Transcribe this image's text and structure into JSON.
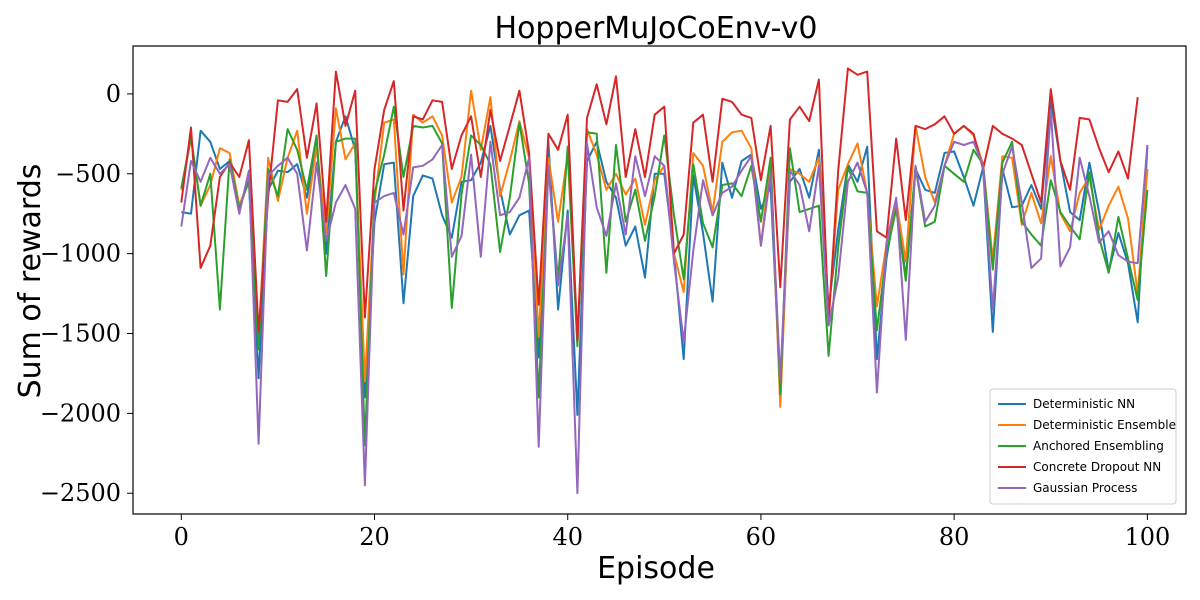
{
  "chart_data": {
    "type": "line",
    "title": "HopperMuJoCoEnv-v0",
    "xlabel": "Episode",
    "ylabel": "Sum of rewards",
    "xlim": [
      -5,
      104
    ],
    "ylim": [
      -2630,
      300
    ],
    "xticks": [
      0,
      20,
      40,
      60,
      80,
      100
    ],
    "yticks": [
      0,
      -500,
      -1000,
      -1500,
      -2000,
      -2500
    ],
    "xtick_labels": [
      "0",
      "20",
      "40",
      "60",
      "80",
      "100"
    ],
    "ytick_labels": [
      "0",
      "−500",
      "−1000",
      "−1500",
      "−2000",
      "−2500"
    ],
    "grid": false,
    "legend_position": "bottom-right",
    "series": [
      {
        "name": "Deterministic NN",
        "color": "#1f77b4",
        "values": [
          -740,
          -750,
          -230,
          -300,
          -470,
          -420,
          -700,
          -550,
          -1780,
          -600,
          -480,
          -490,
          -440,
          -650,
          -320,
          -1000,
          -300,
          -140,
          -350,
          -1900,
          -800,
          -440,
          -430,
          -1310,
          -640,
          -510,
          -530,
          -760,
          -900,
          -550,
          -540,
          -430,
          -200,
          -600,
          -880,
          -760,
          -730,
          -1650,
          -300,
          -1350,
          -730,
          -2010,
          -420,
          -300,
          -550,
          -650,
          -950,
          -830,
          -1150,
          -500,
          -500,
          -1000,
          -1660,
          -510,
          -870,
          -1300,
          -430,
          -650,
          -420,
          -380,
          -720,
          -580,
          -1850,
          -550,
          -470,
          -650,
          -350,
          -1340,
          -850,
          -440,
          -550,
          -330,
          -1660,
          -1030,
          -670,
          -1150,
          -470,
          -600,
          -620,
          -370,
          -360,
          -520,
          -700,
          -460,
          -1490,
          -470,
          -710,
          -700,
          -570,
          -720,
          -40,
          -420,
          -740,
          -790,
          -430,
          -740,
          -1110,
          -870,
          -1060,
          -1430,
          -330
        ]
      },
      {
        "name": "Deterministic Ensemble",
        "color": "#ff7f0e",
        "values": [
          -600,
          -280,
          -700,
          -570,
          -340,
          -370,
          -700,
          -540,
          -1550,
          -400,
          -670,
          -400,
          -230,
          -750,
          -330,
          -870,
          -90,
          -410,
          -310,
          -1800,
          -680,
          -180,
          -160,
          -1130,
          -130,
          -180,
          -140,
          -260,
          -680,
          -520,
          20,
          -350,
          -20,
          -640,
          -420,
          -170,
          -400,
          -1520,
          -400,
          -800,
          -380,
          -1550,
          -220,
          -380,
          -600,
          -500,
          -630,
          -530,
          -820,
          -540,
          -450,
          -1000,
          -1240,
          -370,
          -450,
          -740,
          -300,
          -240,
          -230,
          -340,
          -950,
          -420,
          -1960,
          -470,
          -500,
          -550,
          -400,
          -1400,
          -600,
          -440,
          -310,
          -620,
          -1330,
          -940,
          -670,
          -1050,
          -200,
          -520,
          -680,
          -450,
          -250,
          -200,
          -260,
          -440,
          -1040,
          -390,
          -400,
          -820,
          -620,
          -810,
          -390,
          -750,
          -860,
          -620,
          -520,
          -850,
          -700,
          -580,
          -780,
          -1250,
          -470
        ]
      },
      {
        "name": "Anchored Ensembling",
        "color": "#2ca02c",
        "values": [
          -590,
          -270,
          -700,
          -500,
          -1350,
          -410,
          -720,
          -540,
          -1600,
          -470,
          -640,
          -220,
          -350,
          -600,
          -260,
          -1140,
          -300,
          -280,
          -280,
          -2200,
          -620,
          -380,
          -80,
          -520,
          -200,
          -210,
          -200,
          -310,
          -1340,
          -630,
          -260,
          -320,
          -440,
          -990,
          -650,
          -180,
          -560,
          -1900,
          -450,
          -1170,
          -330,
          -1580,
          -240,
          -250,
          -1120,
          -320,
          -800,
          -600,
          -920,
          -640,
          -260,
          -760,
          -1160,
          -440,
          -810,
          -960,
          -570,
          -560,
          -640,
          -450,
          -800,
          -400,
          -1880,
          -340,
          -740,
          -720,
          -700,
          -1640,
          -960,
          -460,
          -610,
          -620,
          -1480,
          -1000,
          -720,
          -1170,
          -460,
          -830,
          -800,
          -450,
          -500,
          -550,
          -350,
          -440,
          -1100,
          -430,
          -300,
          -800,
          -880,
          -950,
          -540,
          -740,
          -830,
          -910,
          -490,
          -900,
          -1120,
          -770,
          -1030,
          -1290,
          -600
        ]
      },
      {
        "name": "Concrete Dropout NN",
        "color": "#d62728",
        "values": [
          -680,
          -210,
          -1090,
          -950,
          -520,
          -430,
          -520,
          -290,
          -1490,
          -640,
          -40,
          -50,
          30,
          -400,
          -60,
          -800,
          140,
          -200,
          20,
          -1400,
          -470,
          -100,
          80,
          -730,
          -140,
          -160,
          -40,
          -50,
          -470,
          -260,
          -140,
          -520,
          -100,
          -420,
          -200,
          20,
          -370,
          -1320,
          -250,
          -350,
          -130,
          -1540,
          -150,
          60,
          -190,
          110,
          -520,
          -220,
          -520,
          -130,
          -80,
          -1000,
          -880,
          -180,
          -130,
          -550,
          -30,
          -50,
          -130,
          -150,
          -540,
          -200,
          -1210,
          -160,
          -80,
          -170,
          90,
          -1430,
          -480,
          160,
          120,
          140,
          -860,
          -900,
          -280,
          -790,
          -200,
          -220,
          -190,
          -140,
          -250,
          -200,
          -250,
          -470,
          -200,
          -250,
          -280,
          -320,
          -500,
          -680,
          30,
          -420,
          -600,
          -150,
          -160,
          -340,
          -490,
          -360,
          -530,
          -20
        ]
      },
      {
        "name": "Gaussian Process",
        "color": "#9467bd",
        "values": [
          -830,
          -420,
          -550,
          -400,
          -500,
          -440,
          -750,
          -480,
          -2190,
          -510,
          -450,
          -400,
          -500,
          -980,
          -430,
          -920,
          -680,
          -570,
          -720,
          -2450,
          -680,
          -640,
          -620,
          -880,
          -460,
          -450,
          -410,
          -320,
          -1020,
          -890,
          -380,
          -1020,
          -300,
          -760,
          -740,
          -650,
          -400,
          -2210,
          -450,
          -1200,
          -760,
          -2500,
          -310,
          -710,
          -890,
          -560,
          -880,
          -390,
          -640,
          -390,
          -450,
          -1050,
          -1550,
          -980,
          -540,
          -760,
          -620,
          -580,
          -480,
          -390,
          -950,
          -500,
          -1790,
          -480,
          -570,
          -860,
          -450,
          -1450,
          -1150,
          -550,
          -430,
          -620,
          -1870,
          -930,
          -650,
          -1540,
          -450,
          -800,
          -700,
          -450,
          -300,
          -320,
          -300,
          -450,
          -1350,
          -500,
          -330,
          -680,
          -1090,
          -1030,
          -100,
          -1080,
          -960,
          -400,
          -640,
          -930,
          -860,
          -1010,
          -1050,
          -1060,
          -320
        ]
      }
    ]
  }
}
